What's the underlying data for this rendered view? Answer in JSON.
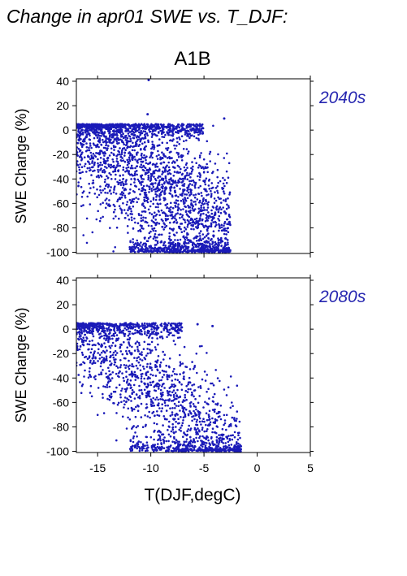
{
  "figure": {
    "title": "Change in apr01 SWE vs. T_DJF:",
    "scenario": "A1B",
    "xlabel": "T(DJF,degC)",
    "point_color": "#1a1ab8",
    "label_color": "#2626b0"
  },
  "chart_data": [
    {
      "type": "scatter",
      "title": "A1B",
      "period_label": "2040s",
      "xlabel": "",
      "ylabel": "SWE Change (%)",
      "xlim": [
        -17,
        5
      ],
      "ylim": [
        -101,
        42
      ],
      "xticks": [
        -15,
        -10,
        -5,
        0,
        5
      ],
      "yticks": [
        -100,
        -80,
        -60,
        -40,
        -20,
        0,
        20,
        40
      ],
      "grid": false,
      "cloud": {
        "x_range": [
          -17,
          -2.5
        ],
        "y_range": [
          -100,
          13
        ],
        "approx_points": 9000,
        "outliers": [
          [
            -10.2,
            41
          ],
          [
            -10.3,
            13
          ],
          [
            -7.0,
            4.0
          ],
          [
            -5.6,
            4.0
          ],
          [
            -3.1,
            9.5
          ]
        ]
      }
    },
    {
      "type": "scatter",
      "title": "",
      "period_label": "2080s",
      "xlabel": "T(DJF,degC)",
      "ylabel": "SWE Change (%)",
      "xlim": [
        -17,
        5
      ],
      "ylim": [
        -101,
        42
      ],
      "xticks": [
        -15,
        -10,
        -5,
        0,
        5
      ],
      "yticks": [
        -100,
        -80,
        -60,
        -40,
        -20,
        0,
        20,
        40
      ],
      "grid": false,
      "cloud": {
        "x_range": [
          -17,
          -1.5
        ],
        "y_range": [
          -100,
          6
        ],
        "approx_points": 9000,
        "outliers": [
          [
            -5.6,
            4.0
          ],
          [
            -7.5,
            2.0
          ],
          [
            -4.2,
            2.5
          ]
        ]
      }
    }
  ]
}
